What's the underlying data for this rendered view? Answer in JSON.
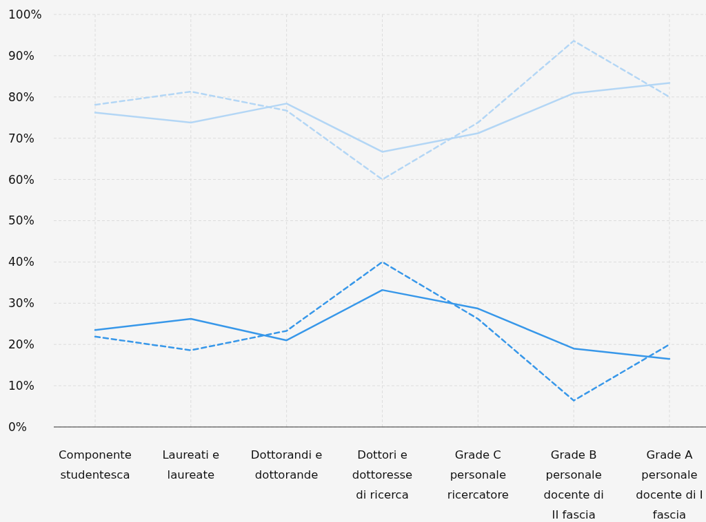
{
  "chart_data": {
    "type": "line",
    "categories": [
      "Componente studentesca",
      "Laureati e laureate",
      "Dottorandi e dottorande",
      "Dottori e dottoresse di ricerca",
      "Grade C personale ricercatore",
      "Grade B personale docente di II fascia",
      "Grade A personale docente di I fascia"
    ],
    "series": [
      {
        "color": "#b3d6f5",
        "line_style": "solid",
        "values": [
          76.2,
          73.8,
          78.4,
          66.7,
          71.2,
          80.9,
          83.4
        ]
      },
      {
        "color": "#b3d6f5",
        "line_style": "dashed",
        "values": [
          78.1,
          81.3,
          76.7,
          60,
          73.8,
          93.6,
          80
        ]
      },
      {
        "color": "#3797e9",
        "line_style": "solid",
        "values": [
          23.5,
          26.2,
          21,
          33.2,
          28.7,
          19,
          16.5
        ]
      },
      {
        "color": "#3797e9",
        "line_style": "dashed",
        "values": [
          21.9,
          18.6,
          23.3,
          40,
          26.2,
          6.4,
          20
        ]
      }
    ],
    "ylim": [
      0,
      100
    ],
    "yticks": [
      {
        "value": 0,
        "label": "0%"
      },
      {
        "value": 10,
        "label": "10%"
      },
      {
        "value": 20,
        "label": "20%"
      },
      {
        "value": 30,
        "label": "30%"
      },
      {
        "value": 40,
        "label": "40%"
      },
      {
        "value": 50,
        "label": "50%"
      },
      {
        "value": 60,
        "label": "60%"
      },
      {
        "value": 70,
        "label": "70%"
      },
      {
        "value": 80,
        "label": "80%"
      },
      {
        "value": 90,
        "label": "90%"
      },
      {
        "value": 100,
        "label": "100%"
      }
    ],
    "grid": true,
    "marker": "none"
  }
}
